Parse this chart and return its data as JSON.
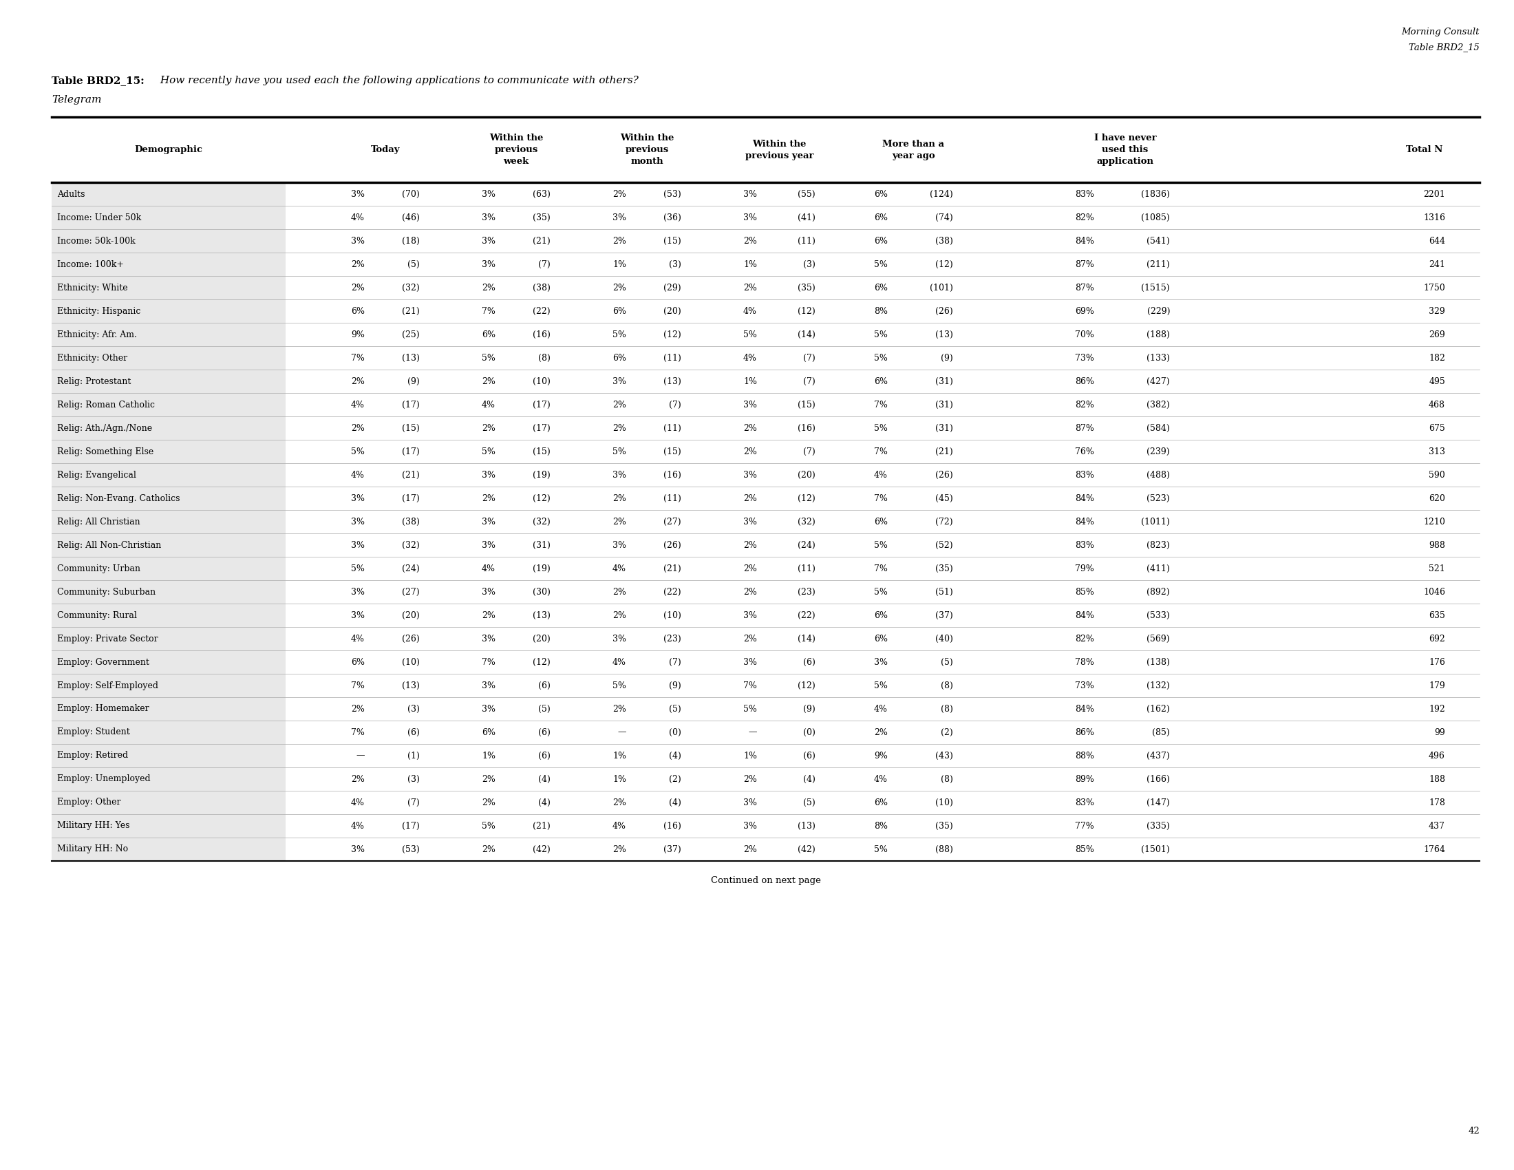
{
  "header_company": "Morning Consult",
  "header_table": "Table BRD2_15",
  "table_label": "Table BRD2_15:",
  "table_question": " How recently have you used each the following applications to communicate with others?",
  "table_subhead": "Telegram",
  "rows": [
    [
      "Adults",
      "3%",
      "(70)",
      "3%",
      "(63)",
      "2%",
      "(53)",
      "3%",
      "(55)",
      "6%",
      "(124)",
      "83%",
      "(1836)",
      "2201"
    ],
    [
      "Income: Under 50k",
      "4%",
      "(46)",
      "3%",
      "(35)",
      "3%",
      "(36)",
      "3%",
      "(41)",
      "6%",
      "(74)",
      "82%",
      "(1085)",
      "1316"
    ],
    [
      "Income: 50k-100k",
      "3%",
      "(18)",
      "3%",
      "(21)",
      "2%",
      "(15)",
      "2%",
      "(11)",
      "6%",
      "(38)",
      "84%",
      "(541)",
      "644"
    ],
    [
      "Income: 100k+",
      "2%",
      "(5)",
      "3%",
      "(7)",
      "1%",
      "(3)",
      "1%",
      "(3)",
      "5%",
      "(12)",
      "87%",
      "(211)",
      "241"
    ],
    [
      "Ethnicity: White",
      "2%",
      "(32)",
      "2%",
      "(38)",
      "2%",
      "(29)",
      "2%",
      "(35)",
      "6%",
      "(101)",
      "87%",
      "(1515)",
      "1750"
    ],
    [
      "Ethnicity: Hispanic",
      "6%",
      "(21)",
      "7%",
      "(22)",
      "6%",
      "(20)",
      "4%",
      "(12)",
      "8%",
      "(26)",
      "69%",
      "(229)",
      "329"
    ],
    [
      "Ethnicity: Afr. Am.",
      "9%",
      "(25)",
      "6%",
      "(16)",
      "5%",
      "(12)",
      "5%",
      "(14)",
      "5%",
      "(13)",
      "70%",
      "(188)",
      "269"
    ],
    [
      "Ethnicity: Other",
      "7%",
      "(13)",
      "5%",
      "(8)",
      "6%",
      "(11)",
      "4%",
      "(7)",
      "5%",
      "(9)",
      "73%",
      "(133)",
      "182"
    ],
    [
      "Relig: Protestant",
      "2%",
      "(9)",
      "2%",
      "(10)",
      "3%",
      "(13)",
      "1%",
      "(7)",
      "6%",
      "(31)",
      "86%",
      "(427)",
      "495"
    ],
    [
      "Relig: Roman Catholic",
      "4%",
      "(17)",
      "4%",
      "(17)",
      "2%",
      "(7)",
      "3%",
      "(15)",
      "7%",
      "(31)",
      "82%",
      "(382)",
      "468"
    ],
    [
      "Relig: Ath./Agn./None",
      "2%",
      "(15)",
      "2%",
      "(17)",
      "2%",
      "(11)",
      "2%",
      "(16)",
      "5%",
      "(31)",
      "87%",
      "(584)",
      "675"
    ],
    [
      "Relig: Something Else",
      "5%",
      "(17)",
      "5%",
      "(15)",
      "5%",
      "(15)",
      "2%",
      "(7)",
      "7%",
      "(21)",
      "76%",
      "(239)",
      "313"
    ],
    [
      "Relig: Evangelical",
      "4%",
      "(21)",
      "3%",
      "(19)",
      "3%",
      "(16)",
      "3%",
      "(20)",
      "4%",
      "(26)",
      "83%",
      "(488)",
      "590"
    ],
    [
      "Relig: Non-Evang. Catholics",
      "3%",
      "(17)",
      "2%",
      "(12)",
      "2%",
      "(11)",
      "2%",
      "(12)",
      "7%",
      "(45)",
      "84%",
      "(523)",
      "620"
    ],
    [
      "Relig: All Christian",
      "3%",
      "(38)",
      "3%",
      "(32)",
      "2%",
      "(27)",
      "3%",
      "(32)",
      "6%",
      "(72)",
      "84%",
      "(1011)",
      "1210"
    ],
    [
      "Relig: All Non-Christian",
      "3%",
      "(32)",
      "3%",
      "(31)",
      "3%",
      "(26)",
      "2%",
      "(24)",
      "5%",
      "(52)",
      "83%",
      "(823)",
      "988"
    ],
    [
      "Community: Urban",
      "5%",
      "(24)",
      "4%",
      "(19)",
      "4%",
      "(21)",
      "2%",
      "(11)",
      "7%",
      "(35)",
      "79%",
      "(411)",
      "521"
    ],
    [
      "Community: Suburban",
      "3%",
      "(27)",
      "3%",
      "(30)",
      "2%",
      "(22)",
      "2%",
      "(23)",
      "5%",
      "(51)",
      "85%",
      "(892)",
      "1046"
    ],
    [
      "Community: Rural",
      "3%",
      "(20)",
      "2%",
      "(13)",
      "2%",
      "(10)",
      "3%",
      "(22)",
      "6%",
      "(37)",
      "84%",
      "(533)",
      "635"
    ],
    [
      "Employ: Private Sector",
      "4%",
      "(26)",
      "3%",
      "(20)",
      "3%",
      "(23)",
      "2%",
      "(14)",
      "6%",
      "(40)",
      "82%",
      "(569)",
      "692"
    ],
    [
      "Employ: Government",
      "6%",
      "(10)",
      "7%",
      "(12)",
      "4%",
      "(7)",
      "3%",
      "(6)",
      "3%",
      "(5)",
      "78%",
      "(138)",
      "176"
    ],
    [
      "Employ: Self-Employed",
      "7%",
      "(13)",
      "3%",
      "(6)",
      "5%",
      "(9)",
      "7%",
      "(12)",
      "5%",
      "(8)",
      "73%",
      "(132)",
      "179"
    ],
    [
      "Employ: Homemaker",
      "2%",
      "(3)",
      "3%",
      "(5)",
      "2%",
      "(5)",
      "5%",
      "(9)",
      "4%",
      "(8)",
      "84%",
      "(162)",
      "192"
    ],
    [
      "Employ: Student",
      "7%",
      "(6)",
      "6%",
      "(6)",
      "—",
      "(0)",
      "—",
      "(0)",
      "2%",
      "(2)",
      "86%",
      "(85)",
      "99"
    ],
    [
      "Employ: Retired",
      "—",
      "(1)",
      "1%",
      "(6)",
      "1%",
      "(4)",
      "1%",
      "(6)",
      "9%",
      "(43)",
      "88%",
      "(437)",
      "496"
    ],
    [
      "Employ: Unemployed",
      "2%",
      "(3)",
      "2%",
      "(4)",
      "1%",
      "(2)",
      "2%",
      "(4)",
      "4%",
      "(8)",
      "89%",
      "(166)",
      "188"
    ],
    [
      "Employ: Other",
      "4%",
      "(7)",
      "2%",
      "(4)",
      "2%",
      "(4)",
      "3%",
      "(5)",
      "6%",
      "(10)",
      "83%",
      "(147)",
      "178"
    ],
    [
      "Military HH: Yes",
      "4%",
      "(17)",
      "5%",
      "(21)",
      "4%",
      "(16)",
      "3%",
      "(13)",
      "8%",
      "(35)",
      "77%",
      "(335)",
      "437"
    ],
    [
      "Military HH: No",
      "3%",
      "(53)",
      "2%",
      "(42)",
      "2%",
      "(37)",
      "2%",
      "(42)",
      "5%",
      "(88)",
      "85%",
      "(1501)",
      "1764"
    ]
  ],
  "footer": "Continued on next page",
  "page_number": "42",
  "demo_bg_color": "#e8e8e8"
}
